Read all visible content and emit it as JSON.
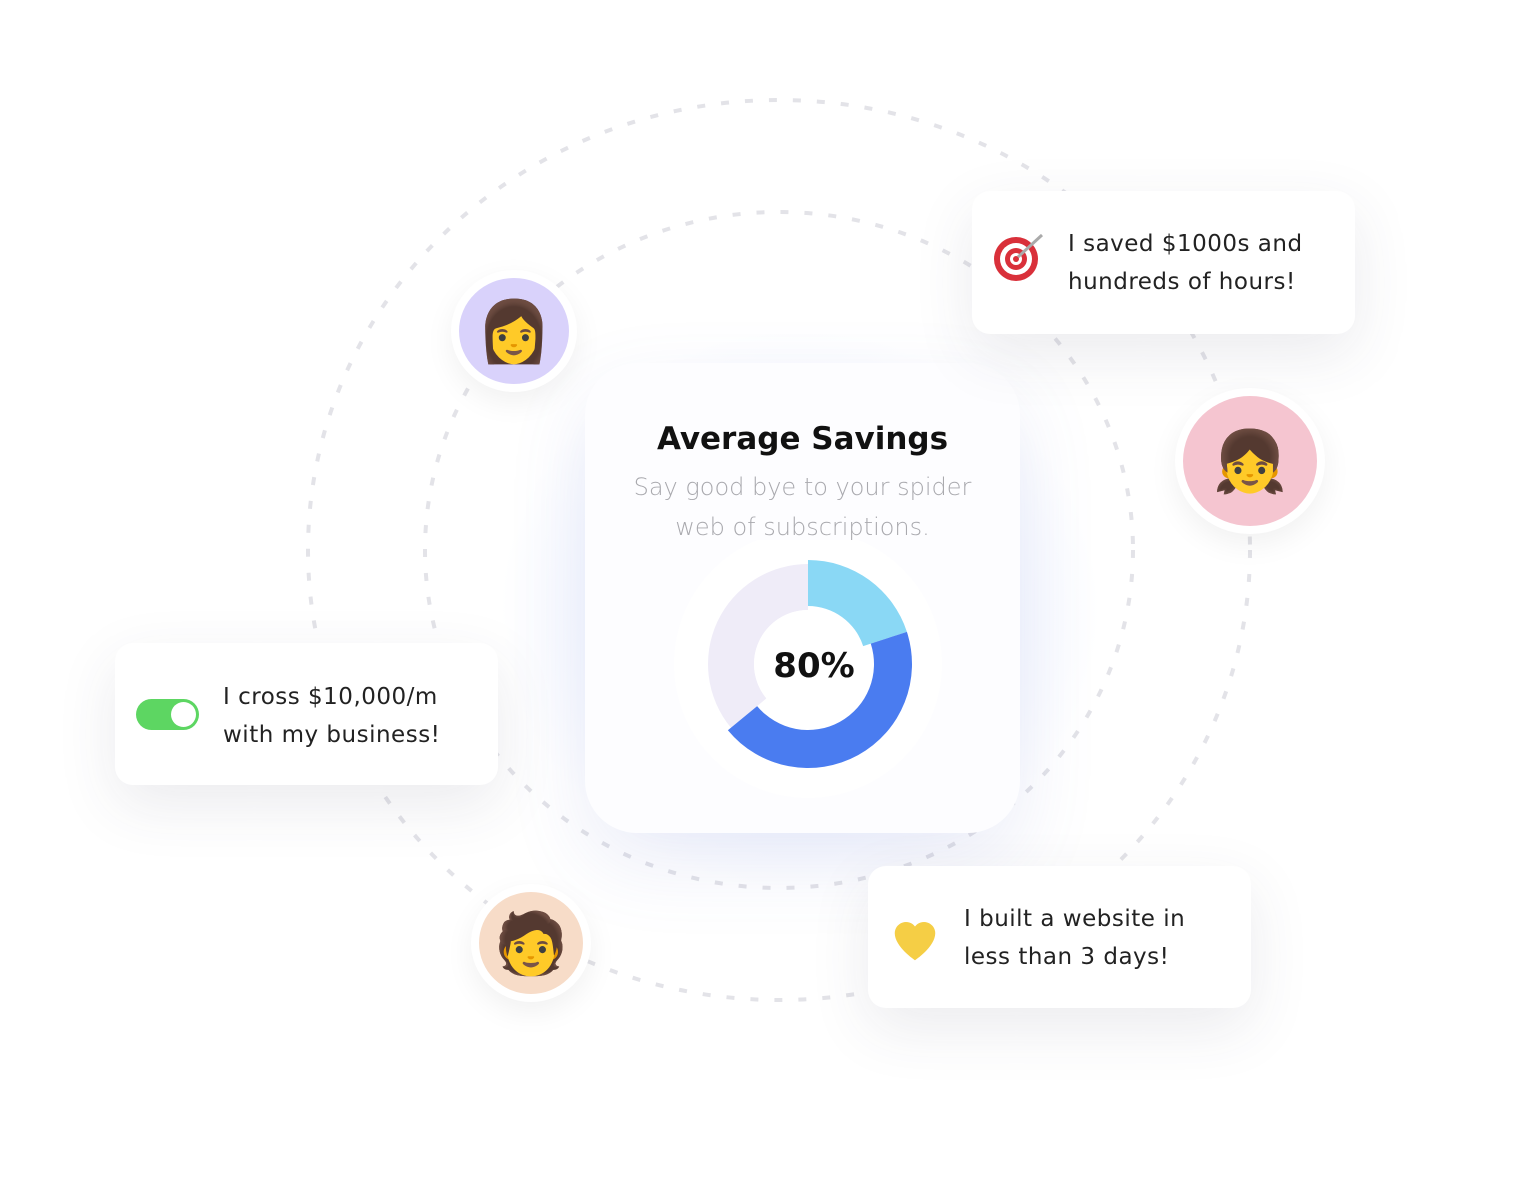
{
  "center_card": {
    "title": "Average Savings",
    "subtitle": "Say good bye to your spider web of subscriptions.",
    "percent_label": "80%"
  },
  "chart_data": {
    "type": "pie",
    "center_label": "80%",
    "segments": [
      {
        "share": 0.2,
        "color": "#8AD8F5"
      },
      {
        "share": 0.44,
        "color": "#4A7CF0"
      },
      {
        "share": 0.36,
        "color": "#EFECF8"
      }
    ]
  },
  "testimonials": [
    {
      "icon": "target-icon",
      "text_line1": "I saved $1000s and",
      "text_line2": "hundreds of hours!"
    },
    {
      "icon": "toggle-icon",
      "text_line1": "I cross $10,000/m",
      "text_line2": "with my business!",
      "toggle_on": true,
      "toggle_color": "#5DD662"
    },
    {
      "icon": "heart-icon",
      "text_line1": "I built a website in",
      "text_line2": "less than 3 days!",
      "color": "#F5CE45"
    }
  ],
  "avatars": [
    {
      "icon": "woman-glasses-avatar",
      "bg": "#D9D2FB"
    },
    {
      "icon": "woman-beanie-avatar",
      "bg": "#F5C5D0"
    },
    {
      "icon": "man-glasses-avatar",
      "bg": "#F7DCC8"
    }
  ]
}
